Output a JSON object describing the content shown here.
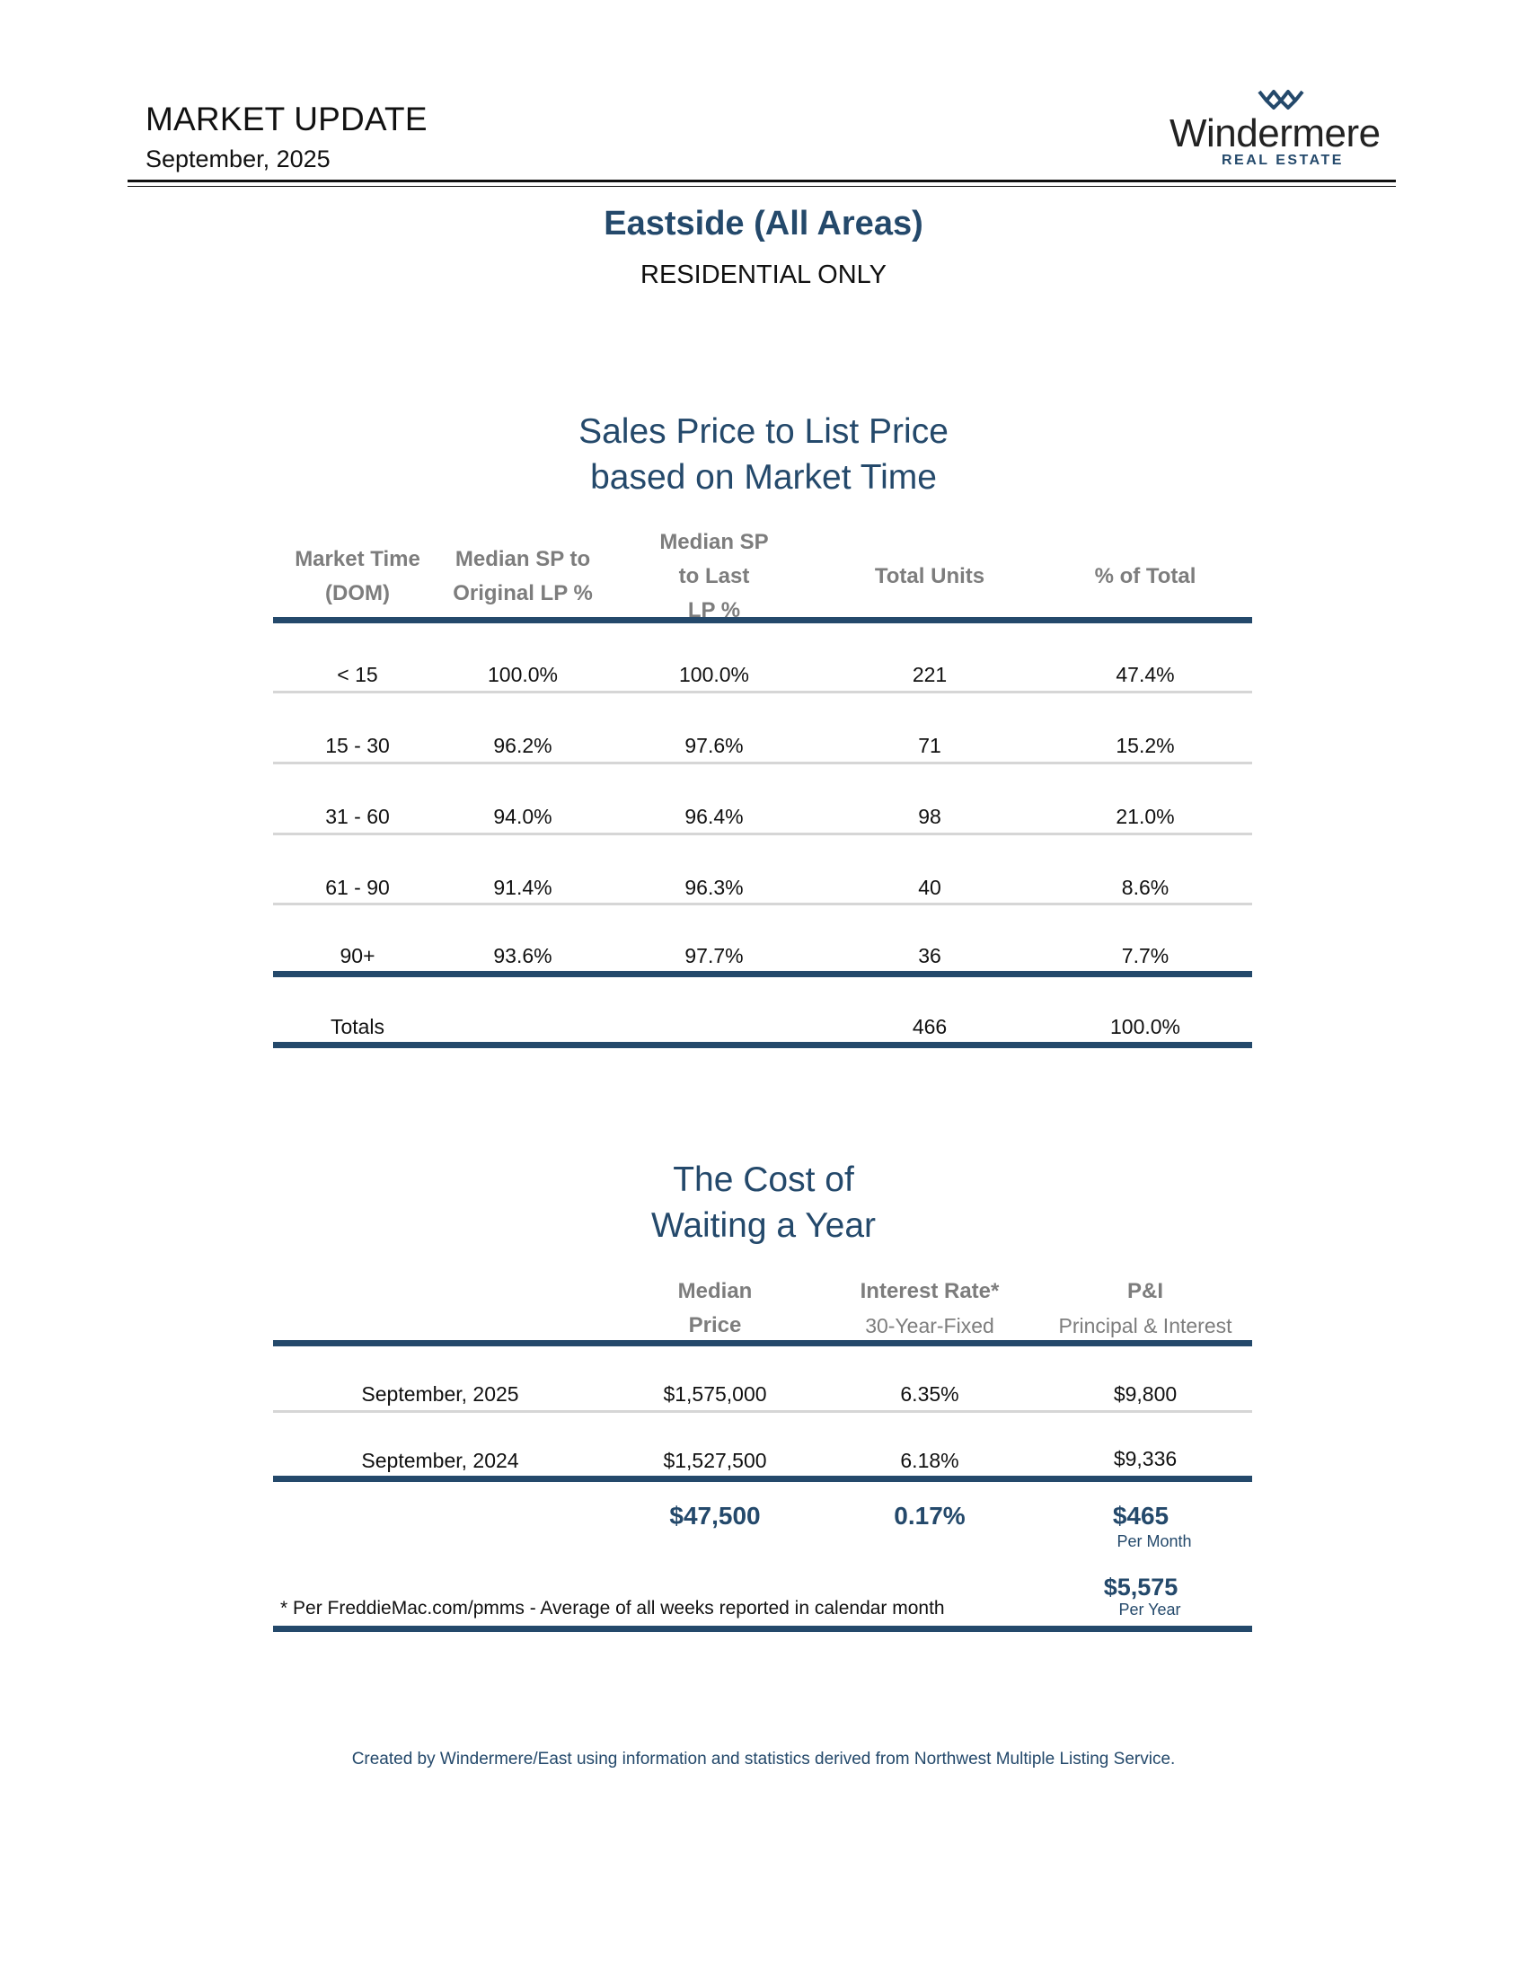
{
  "header": {
    "title": "MARKET UPDATE",
    "date": "September, 2025",
    "logo_name": "Windermere",
    "logo_sub": "REAL ESTATE"
  },
  "area": {
    "title": "Eastside (All Areas)",
    "subtitle": "RESIDENTIAL ONLY"
  },
  "sp_table": {
    "title_line1": "Sales Price to List Price",
    "title_line2": "based on Market Time",
    "headers": {
      "market_time_1": "Market Time",
      "market_time_2": "(DOM)",
      "sp_orig_1": "Median SP to",
      "sp_orig_2": "Original LP %",
      "sp_last_1": "Median SP",
      "sp_last_2": "to Last",
      "sp_last_3": "LP %",
      "total_units": "Total Units",
      "pct_total": "% of Total"
    },
    "rows": [
      {
        "dom": "< 15",
        "sp_orig": "100.0%",
        "sp_last": "100.0%",
        "units": "221",
        "pct": "47.4%"
      },
      {
        "dom": "15 - 30",
        "sp_orig": "96.2%",
        "sp_last": "97.6%",
        "units": "71",
        "pct": "15.2%"
      },
      {
        "dom": "31 - 60",
        "sp_orig": "94.0%",
        "sp_last": "96.4%",
        "units": "98",
        "pct": "21.0%"
      },
      {
        "dom": "61 - 90",
        "sp_orig": "91.4%",
        "sp_last": "96.3%",
        "units": "40",
        "pct": "8.6%"
      },
      {
        "dom": "90+",
        "sp_orig": "93.6%",
        "sp_last": "97.7%",
        "units": "36",
        "pct": "7.7%"
      }
    ],
    "totals": {
      "label": "Totals",
      "units": "466",
      "pct": "100.0%"
    }
  },
  "cost_table": {
    "title_line1": "The Cost of",
    "title_line2": "Waiting a Year",
    "headers": {
      "price_1": "Median",
      "price_2": "Price",
      "rate_1": "Interest Rate*",
      "rate_2": "30-Year-Fixed",
      "pi_1": "P&I",
      "pi_2": "Principal & Interest"
    },
    "rows": [
      {
        "label": "September, 2025",
        "price": "$1,575,000",
        "rate": "6.35%",
        "pi": "$9,800"
      },
      {
        "label": "September, 2024",
        "price": "$1,527,500",
        "rate": "6.18%",
        "pi": "$9,336"
      }
    ],
    "diff": {
      "price": "$47,500",
      "rate": "0.17%",
      "pi_month": "$465",
      "pi_month_label": "Per Month",
      "pi_year": "$5,575",
      "pi_year_label": "Per Year"
    },
    "footnote": "* Per FreddieMac.com/pmms - Average of all weeks reported in calendar month"
  },
  "credit": "Created by Windermere/East using information and statistics derived from Northwest Multiple Listing Service.",
  "colors": {
    "accent": "#24496b",
    "header_gray": "#7d7d7d",
    "divider": "#d6d6d6"
  }
}
